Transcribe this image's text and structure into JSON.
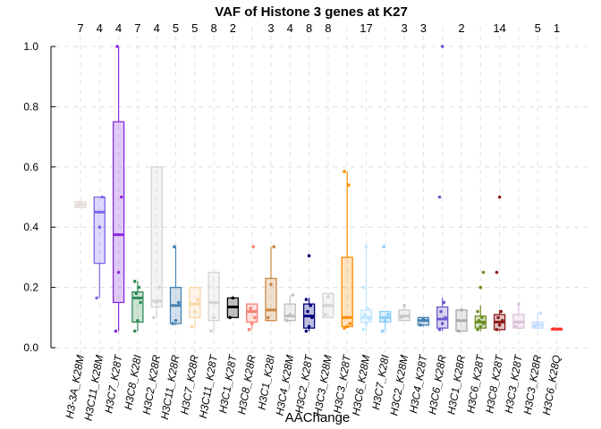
{
  "chart_data": {
    "type": "box",
    "title": "VAF of Histone 3 genes at K27",
    "xlabel": "AAChange",
    "ylabel": "",
    "ylim": [
      0,
      1.0
    ],
    "yticks": [
      "0.0",
      "0.2",
      "0.4",
      "0.6",
      "0.8",
      "1.0"
    ],
    "grid": true,
    "categories": [
      {
        "label": "H3-3A_K28M",
        "n": "7",
        "color": "#e8ddd8",
        "q1": 0.465,
        "median": 0.475,
        "q3": 0.485,
        "wlo": 0.465,
        "whi": 0.49,
        "points": [
          0.47,
          0.48
        ]
      },
      {
        "label": "H3C11_K28M",
        "n": "4",
        "color": "#7b68ee",
        "q1": 0.28,
        "median": 0.45,
        "q3": 0.5,
        "wlo": 0.165,
        "whi": 0.5,
        "points": [
          0.165,
          0.4,
          0.5
        ]
      },
      {
        "label": "H3C7_K28T",
        "n": "4",
        "color": "#8a2be2",
        "q1": 0.15,
        "median": 0.375,
        "q3": 0.75,
        "wlo": 0.055,
        "whi": 1.0,
        "points": [
          0.055,
          0.25,
          0.5,
          1.0
        ]
      },
      {
        "label": "H3C8_K28I",
        "n": "7",
        "color": "#2e8b57",
        "q1": 0.085,
        "median": 0.165,
        "q3": 0.185,
        "wlo": 0.055,
        "whi": 0.22,
        "points": [
          0.055,
          0.09,
          0.15,
          0.18,
          0.2,
          0.22
        ]
      },
      {
        "label": "H3C2_K28R",
        "n": "4",
        "color": "#d3d3d3",
        "q1": 0.135,
        "median": 0.155,
        "q3": 0.6,
        "wlo": 0.1,
        "whi": 0.6,
        "points": [
          0.1,
          0.15,
          0.2
        ]
      },
      {
        "label": "H3C11_K28R",
        "n": "5",
        "color": "#4682b4",
        "q1": 0.08,
        "median": 0.14,
        "q3": 0.2,
        "wlo": 0.075,
        "whi": 0.335,
        "points": [
          0.08,
          0.09,
          0.15,
          0.335
        ]
      },
      {
        "label": "H3C7_K28R",
        "n": "5",
        "color": "#fad6a5",
        "q1": 0.1,
        "median": 0.145,
        "q3": 0.2,
        "wlo": 0.065,
        "whi": 0.2,
        "points": [
          0.07,
          0.12,
          0.16
        ]
      },
      {
        "label": "H3C11_K28T",
        "n": "8",
        "color": "#d3d3d3",
        "q1": 0.09,
        "median": 0.15,
        "q3": 0.25,
        "wlo": 0.055,
        "whi": 0.25,
        "points": [
          0.055,
          0.1
        ]
      },
      {
        "label": "H3C1_K28T",
        "n": "2",
        "color": "#000000",
        "q1": 0.1,
        "median": 0.135,
        "q3": 0.165,
        "wlo": 0.1,
        "whi": 0.165,
        "points": [
          0.1,
          0.165
        ]
      },
      {
        "label": "H3C8_K28R",
        "n": "",
        "color": "#fa8072",
        "q1": 0.085,
        "median": 0.12,
        "q3": 0.145,
        "wlo": 0.06,
        "whi": 0.145,
        "points": [
          0.06,
          0.08,
          0.1,
          0.13,
          0.335
        ]
      },
      {
        "label": "H3C1_K28I",
        "n": "3",
        "color": "#cd853f",
        "q1": 0.09,
        "median": 0.125,
        "q3": 0.23,
        "wlo": 0.09,
        "whi": 0.335,
        "points": [
          0.1,
          0.21,
          0.335
        ]
      },
      {
        "label": "H3C4_K28M",
        "n": "4",
        "color": "#c0c0c0",
        "q1": 0.09,
        "median": 0.105,
        "q3": 0.145,
        "wlo": 0.085,
        "whi": 0.175,
        "points": [
          0.09,
          0.11,
          0.175
        ]
      },
      {
        "label": "H3C2_K28T",
        "n": "8",
        "color": "#000080",
        "q1": 0.065,
        "median": 0.105,
        "q3": 0.145,
        "wlo": 0.055,
        "whi": 0.165,
        "points": [
          0.055,
          0.07,
          0.1,
          0.12,
          0.14,
          0.16,
          0.305
        ]
      },
      {
        "label": "H3C3_K28M",
        "n": "8",
        "color": "#d3d3d3",
        "q1": 0.1,
        "median": 0.14,
        "q3": 0.18,
        "wlo": 0.1,
        "whi": 0.18,
        "points": [
          0.11,
          0.17
        ]
      },
      {
        "label": "H3C3_K28T",
        "n": "",
        "color": "#ff8c00",
        "q1": 0.07,
        "median": 0.1,
        "q3": 0.3,
        "wlo": 0.065,
        "whi": 0.585,
        "points": [
          0.065,
          0.07,
          0.08,
          0.1,
          0.54,
          0.585
        ]
      },
      {
        "label": "H3C6_K28M",
        "n": "17",
        "color": "#bfe6ff",
        "q1": 0.085,
        "median": 0.1,
        "q3": 0.125,
        "wlo": 0.055,
        "whi": 0.335,
        "points": [
          0.06,
          0.08,
          0.095,
          0.11,
          0.13,
          0.2,
          0.335
        ]
      },
      {
        "label": "H3C7_K28I",
        "n": "",
        "color": "#87cefa",
        "q1": 0.085,
        "median": 0.1,
        "q3": 0.12,
        "wlo": 0.055,
        "whi": 0.12,
        "points": [
          0.055,
          0.09,
          0.11,
          0.335
        ]
      },
      {
        "label": "H3C2_K28M",
        "n": "3",
        "color": "#c8c8c8",
        "q1": 0.09,
        "median": 0.105,
        "q3": 0.125,
        "wlo": 0.09,
        "whi": 0.14,
        "points": [
          0.1,
          0.14
        ]
      },
      {
        "label": "H3C4_K28T",
        "n": "3",
        "color": "#4682b4",
        "q1": 0.075,
        "median": 0.09,
        "q3": 0.1,
        "wlo": 0.07,
        "whi": 0.1,
        "points": [
          0.075,
          0.095
        ]
      },
      {
        "label": "H3C6_K28R",
        "n": "",
        "color": "#6a5acd",
        "q1": 0.065,
        "median": 0.095,
        "q3": 0.135,
        "wlo": 0.055,
        "whi": 0.165,
        "points": [
          0.06,
          0.08,
          0.1,
          0.12,
          0.15,
          0.5,
          1.0
        ]
      },
      {
        "label": "H3C1_K28R",
        "n": "2",
        "color": "#a9a9a9",
        "q1": 0.055,
        "median": 0.09,
        "q3": 0.125,
        "wlo": 0.055,
        "whi": 0.125,
        "points": [
          0.055,
          0.125
        ]
      },
      {
        "label": "H3C6_K28T",
        "n": "",
        "color": "#6b8e23",
        "q1": 0.065,
        "median": 0.085,
        "q3": 0.105,
        "wlo": 0.055,
        "whi": 0.14,
        "points": [
          0.06,
          0.07,
          0.08,
          0.09,
          0.1,
          0.12,
          0.2,
          0.25
        ]
      },
      {
        "label": "H3C8_K28T",
        "n": "14",
        "color": "#8b1a1a",
        "q1": 0.06,
        "median": 0.085,
        "q3": 0.11,
        "wlo": 0.055,
        "whi": 0.125,
        "points": [
          0.06,
          0.075,
          0.09,
          0.1,
          0.12,
          0.25,
          0.5
        ]
      },
      {
        "label": "H3C3_K28T",
        "n": "",
        "color": "#d8bfd8",
        "q1": 0.065,
        "median": 0.085,
        "q3": 0.11,
        "wlo": 0.06,
        "whi": 0.145,
        "points": [
          0.07,
          0.145
        ]
      },
      {
        "label": "H3C3_K28R",
        "n": "5",
        "color": "#c6dcff",
        "q1": 0.065,
        "median": 0.075,
        "q3": 0.085,
        "wlo": 0.06,
        "whi": 0.115,
        "points": [
          0.07,
          0.08,
          0.115
        ]
      },
      {
        "label": "H3C6_K28Q",
        "n": "1",
        "color": "#ff3030",
        "q1": 0.062,
        "median": 0.062,
        "q3": 0.062,
        "wlo": 0.062,
        "whi": 0.062,
        "points": [
          0.062
        ]
      }
    ]
  }
}
